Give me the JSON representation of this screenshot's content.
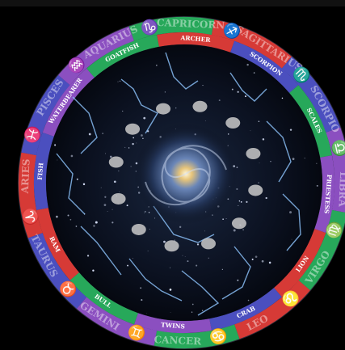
{
  "wheel": {
    "outer_labels": [
      "CAPRICORN",
      "SAGITTARIUS",
      "SCORPIO",
      "LIBRA",
      "VIRGO",
      "LEO",
      "CANCER",
      "GEMINI",
      "TAURUS",
      "ARIES",
      "PISCES",
      "AQUARIUS"
    ],
    "inner_labels": [
      "ARCHER",
      "SCORPION",
      "SCALES",
      "PRIESTESS",
      "LION",
      "CRAB",
      "TWINS",
      "BULL",
      "RAM",
      "FISH",
      "WATERBEARER",
      "GOATFISH"
    ],
    "glyphs": [
      "♑",
      "♐",
      "♏",
      "♎",
      "♍",
      "♌",
      "♋",
      "♊",
      "♉",
      "♈",
      "♓",
      "♒"
    ],
    "ring_colors": [
      "#27a85a",
      "#d63a36",
      "#4b4fbf",
      "#8b4fc0"
    ]
  }
}
